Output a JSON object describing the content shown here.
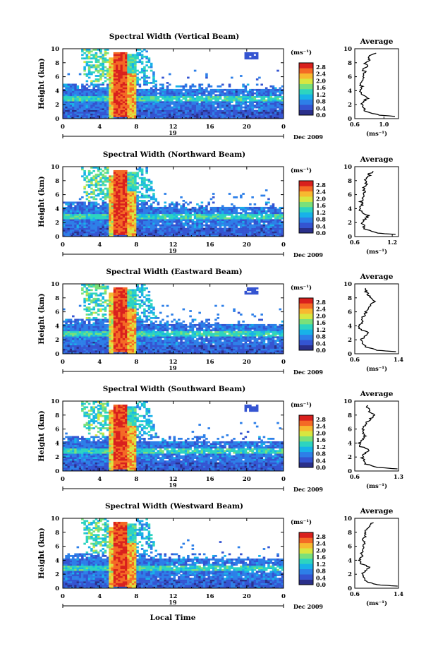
{
  "chart_data": {
    "type": "heatmap",
    "xlabel": "Local Time",
    "date_label": "Dec 2009",
    "day_label": "19",
    "x_ticks": [
      "0",
      "4",
      "8",
      "12",
      "16",
      "20",
      "0"
    ],
    "xlim_hours": [
      0,
      24
    ],
    "ylabel": "Height (km)",
    "y_ticks": [
      "0",
      "2",
      "4",
      "6",
      "8",
      "10"
    ],
    "ylim_km": [
      0,
      10
    ],
    "colorbar": {
      "unit_label": "(ms⁻¹)",
      "ticks": [
        "2.8",
        "2.4",
        "2.0",
        "1.6",
        "1.2",
        "0.8",
        "0.4",
        "0.0"
      ],
      "range": [
        0,
        3.0
      ],
      "colormap": [
        "#2a2f8a",
        "#3454d1",
        "#2d7fe8",
        "#18b2e8",
        "#2dd4c0",
        "#7ae07a",
        "#d8e640",
        "#f7b930",
        "#f46a25",
        "#d9201d"
      ]
    },
    "average_title": "Average",
    "average_unit": "(ms⁻¹)",
    "heights_km": [
      0.3,
      0.5,
      1.0,
      1.5,
      2.0,
      2.5,
      3.0,
      3.5,
      4.0,
      4.5,
      5.0,
      5.5,
      6.0,
      6.5,
      7.0,
      7.5,
      8.0,
      8.5,
      9.0,
      9.5
    ],
    "panels": [
      {
        "title": "Spectral Width (Vertical Beam)",
        "avg_ticks": [
          "0.6",
          "1.0"
        ],
        "avg_xlim": [
          0.6,
          1.2
        ],
        "avg_profile": [
          1.15,
          0.95,
          0.75,
          0.72,
          0.7,
          0.72,
          0.78,
          0.68,
          0.66,
          0.7,
          0.68,
          0.72,
          0.7,
          0.74,
          0.72,
          0.76,
          0.74,
          0.8,
          0.82,
          0.9
        ]
      },
      {
        "title": "Spectral Width (Northward Beam)",
        "avg_ticks": [
          "0.6",
          "1.2"
        ],
        "avg_xlim": [
          0.6,
          1.3
        ],
        "avg_profile": [
          1.25,
          0.95,
          0.78,
          0.74,
          0.72,
          0.76,
          0.82,
          0.7,
          0.68,
          0.72,
          0.7,
          0.74,
          0.72,
          0.76,
          0.74,
          0.78,
          0.76,
          0.82,
          0.84,
          0.92
        ]
      },
      {
        "title": "Spectral Width (Eastward Beam)",
        "avg_ticks": [
          "0.6",
          "1.4"
        ],
        "avg_xlim": [
          0.6,
          1.4
        ],
        "avg_profile": [
          1.35,
          1.0,
          0.8,
          0.75,
          0.72,
          0.78,
          0.85,
          0.7,
          0.68,
          0.74,
          0.72,
          0.78,
          0.8,
          0.86,
          0.9,
          0.95,
          0.88,
          0.84,
          0.8,
          0.76
        ]
      },
      {
        "title": "Spectral Width (Southward Beam)",
        "avg_ticks": [
          "0.6",
          "1.3"
        ],
        "avg_xlim": [
          0.6,
          1.3
        ],
        "avg_profile": [
          1.28,
          0.98,
          0.78,
          0.74,
          0.72,
          0.76,
          0.84,
          0.7,
          0.66,
          0.72,
          0.78,
          0.74,
          0.72,
          0.76,
          0.8,
          0.86,
          0.9,
          0.84,
          0.8,
          0.82
        ]
      },
      {
        "title": "Spectral Width (Westward Beam)",
        "avg_ticks": [
          "0.6",
          "1.4"
        ],
        "avg_xlim": [
          0.6,
          1.4
        ],
        "avg_profile": [
          1.38,
          1.0,
          0.8,
          0.76,
          0.74,
          0.8,
          0.86,
          0.72,
          0.68,
          0.74,
          0.72,
          0.76,
          0.74,
          0.78,
          0.76,
          0.8,
          0.78,
          0.84,
          0.86,
          0.94
        ]
      }
    ]
  }
}
